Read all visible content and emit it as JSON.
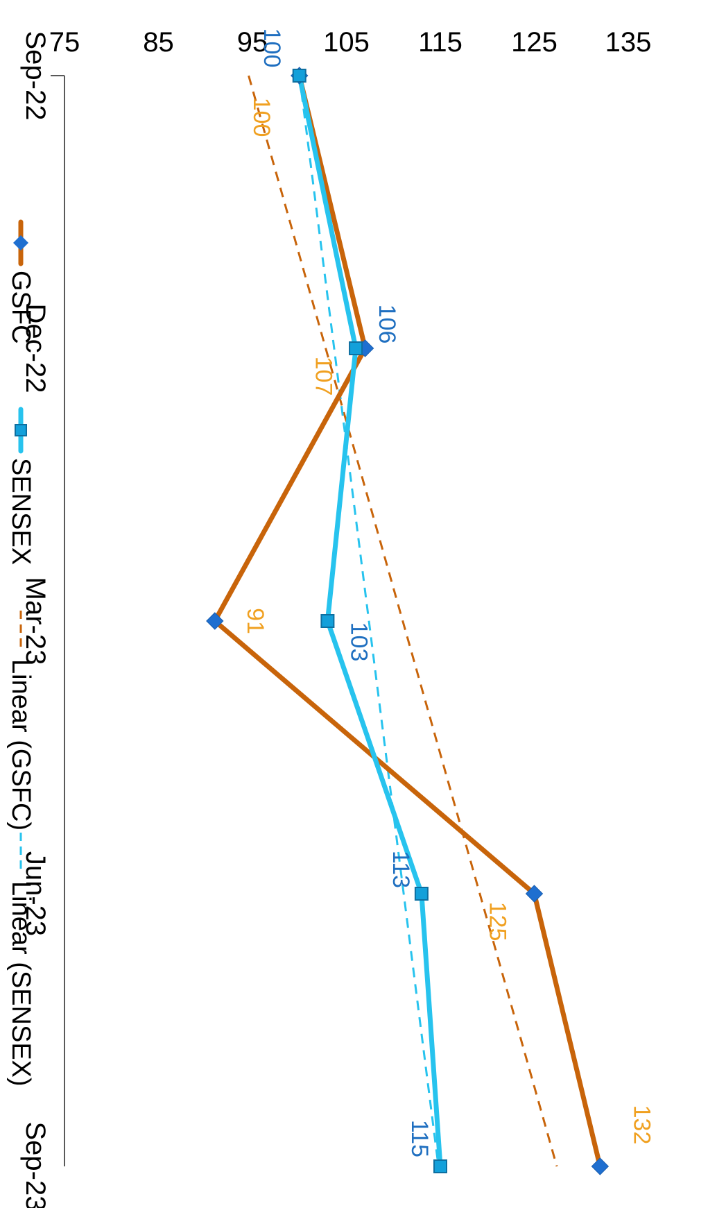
{
  "chart_data": {
    "type": "line",
    "orientation": "rotated-90-clockwise",
    "categories": [
      "Sep-22",
      "Dec-22",
      "Mar-23",
      "Jun-23",
      "Sep-23"
    ],
    "ylim": [
      75,
      135
    ],
    "yticks": [
      75,
      85,
      95,
      105,
      115,
      125,
      135
    ],
    "series": [
      {
        "name": "GSFC",
        "values": [
          100,
          107,
          91,
          125,
          132
        ],
        "labels": [
          "100",
          "107",
          "91",
          "125",
          "132"
        ],
        "color": "#C8640A",
        "marker": "diamond",
        "marker_color": "#1F6FD0",
        "label_color": "#F0A020"
      },
      {
        "name": "SENSEX",
        "values": [
          100,
          106,
          103,
          113,
          115
        ],
        "labels": [
          "100",
          "106",
          "103",
          "113",
          "115"
        ],
        "color": "#27C3EE",
        "marker": "square",
        "marker_color": "#13A0DA",
        "label_color": "#1F6FC0"
      }
    ],
    "trendlines": [
      {
        "name": "Linear (GSFC)",
        "of": "GSFC",
        "color": "#C8640A"
      },
      {
        "name": "Linear (SENSEX)",
        "of": "SENSEX",
        "color": "#27C3EE"
      }
    ],
    "legend_position": "top",
    "grid": false
  }
}
